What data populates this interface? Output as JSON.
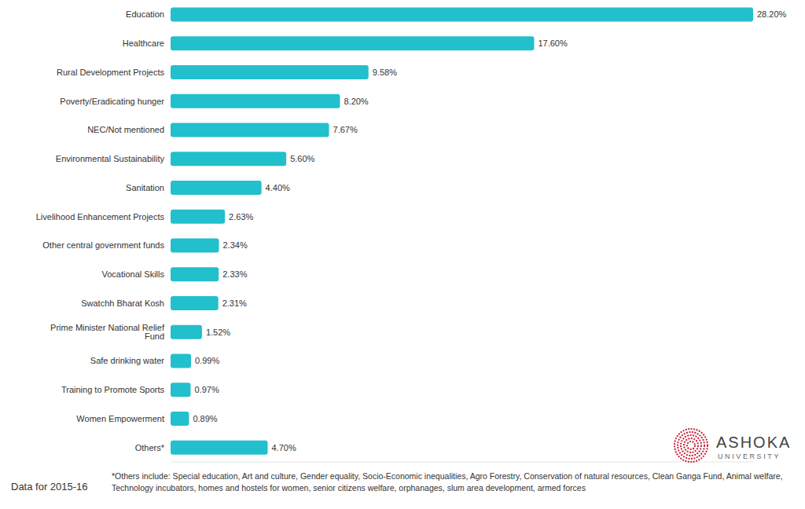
{
  "chart_data": {
    "type": "bar",
    "orientation": "horizontal",
    "categories": [
      "Education",
      "Healthcare",
      "Rural Development Projects",
      "Poverty/Eradicating hunger",
      "NEC/Not mentioned",
      "Environmental Sustainability",
      "Sanitation",
      "Livelihood Enhancement Projects",
      "Other central government funds",
      "Vocational Skills",
      "Swatchh Bharat Kosh",
      "Prime Minister National Relief Fund",
      "Safe drinking water",
      "Training to Promote Sports",
      "Women Empowerment",
      "Others*"
    ],
    "values": [
      28.2,
      17.6,
      9.58,
      8.2,
      7.67,
      5.6,
      4.4,
      2.63,
      2.34,
      2.33,
      2.31,
      1.52,
      0.99,
      0.97,
      0.89,
      4.7
    ],
    "value_labels": [
      "28.20%",
      "17.60%",
      "9.58%",
      "8.20%",
      "7.67%",
      "5.60%",
      "4.40%",
      "2.63%",
      "2.34%",
      "2.33%",
      "2.31%",
      "1.52%",
      "0.99%",
      "0.97%",
      "0.89%",
      "4.70%"
    ],
    "color": "#22bfcd",
    "xlim": [
      0,
      28.2
    ],
    "data_labels": true,
    "tick_labels": "y",
    "grid": false,
    "annotations": [
      "Data for 2015-16",
      "*Others include: Special education, Art and culture, Gender equality, Socio-Economic inequalities, Agro Forestry, Conservation of natural resources, Clean Ganga Fund, Animal welfare, Technology incubators, homes and hostels for women, senior citizens welfare, orphanages, slum area development, armed forces",
      "ASHOKA",
      "UNIVERSITY"
    ]
  }
}
